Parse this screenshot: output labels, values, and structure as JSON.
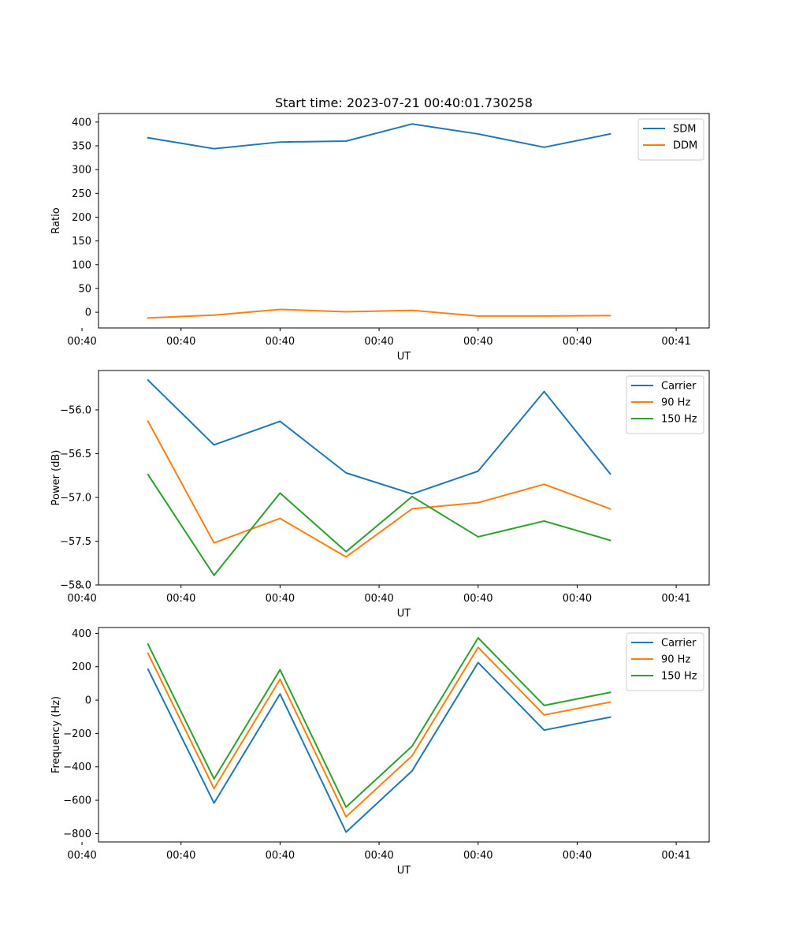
{
  "chart_data": [
    {
      "type": "line",
      "title": "Start time: 2023-07-21 00:40:01.730258",
      "xlabel": "UT",
      "ylabel": "Ratio",
      "x": [
        1,
        2,
        3,
        4,
        5,
        6,
        7,
        8
      ],
      "xlim": [
        0.25,
        9.5
      ],
      "xticks": [
        {
          "pos": 0,
          "label": "00:40"
        },
        {
          "pos": 1.5,
          "label": "00:40"
        },
        {
          "pos": 3,
          "label": "00:40"
        },
        {
          "pos": 4.5,
          "label": "00:40"
        },
        {
          "pos": 6,
          "label": "00:40"
        },
        {
          "pos": 7.5,
          "label": "00:40"
        },
        {
          "pos": 9,
          "label": "00:41"
        }
      ],
      "ylim": [
        -33,
        418
      ],
      "yticks": [
        0,
        50,
        100,
        150,
        200,
        250,
        300,
        350,
        400
      ],
      "legend": "top-right",
      "series": [
        {
          "name": "SDM",
          "color": "#1f77b4",
          "values": [
            367,
            344,
            358,
            360,
            396,
            375,
            347,
            375
          ]
        },
        {
          "name": "DDM",
          "color": "#ff7f0e",
          "values": [
            -12,
            -6,
            6,
            1,
            4,
            -8,
            -8,
            -7
          ]
        }
      ]
    },
    {
      "type": "line",
      "title": "",
      "xlabel": "UT",
      "ylabel": "Power (dB)",
      "x": [
        1,
        2,
        3,
        4,
        5,
        6,
        7,
        8
      ],
      "xlim": [
        0.25,
        9.5
      ],
      "xticks": [
        {
          "pos": 0,
          "label": "00:40"
        },
        {
          "pos": 1.5,
          "label": "00:40"
        },
        {
          "pos": 3,
          "label": "00:40"
        },
        {
          "pos": 4.5,
          "label": "00:40"
        },
        {
          "pos": 6,
          "label": "00:40"
        },
        {
          "pos": 7.5,
          "label": "00:40"
        },
        {
          "pos": 9,
          "label": "00:41"
        }
      ],
      "ylim": [
        -58.0,
        -55.55
      ],
      "yticks": [
        -58.0,
        -57.5,
        -57.0,
        -56.5,
        -56.0
      ],
      "ytick_labels": [
        "−58.0",
        "−57.5",
        "−57.0",
        "−56.5",
        "−56.0"
      ],
      "legend": "top-right",
      "series": [
        {
          "name": "Carrier",
          "color": "#1f77b4",
          "values": [
            -55.66,
            -56.4,
            -56.13,
            -56.72,
            -56.96,
            -56.7,
            -55.79,
            -56.73
          ]
        },
        {
          "name": "90 Hz",
          "color": "#ff7f0e",
          "values": [
            -56.13,
            -57.52,
            -57.24,
            -57.68,
            -57.13,
            -57.06,
            -56.85,
            -57.13
          ]
        },
        {
          "name": "150 Hz",
          "color": "#2ca02c",
          "values": [
            -56.74,
            -57.89,
            -56.95,
            -57.62,
            -56.99,
            -57.45,
            -57.27,
            -57.49
          ]
        }
      ]
    },
    {
      "type": "line",
      "title": "",
      "xlabel": "UT",
      "ylabel": "Frequency (Hz)",
      "x": [
        1,
        2,
        3,
        4,
        5,
        6,
        7,
        8
      ],
      "xlim": [
        0.25,
        9.5
      ],
      "xticks": [
        {
          "pos": 0,
          "label": "00:40"
        },
        {
          "pos": 1.5,
          "label": "00:40"
        },
        {
          "pos": 3,
          "label": "00:40"
        },
        {
          "pos": 4.5,
          "label": "00:40"
        },
        {
          "pos": 6,
          "label": "00:40"
        },
        {
          "pos": 7.5,
          "label": "00:40"
        },
        {
          "pos": 9,
          "label": "00:41"
        }
      ],
      "ylim": [
        -850,
        435
      ],
      "yticks": [
        -800,
        -600,
        -400,
        -200,
        0,
        200,
        400
      ],
      "ytick_labels": [
        "−800",
        "−600",
        "−400",
        "−200",
        "0",
        "200",
        "400"
      ],
      "legend": "top-right",
      "series": [
        {
          "name": "Carrier",
          "color": "#1f77b4",
          "values": [
            185,
            -617,
            37,
            -791,
            -424,
            225,
            -180,
            -102
          ]
        },
        {
          "name": "90 Hz",
          "color": "#ff7f0e",
          "values": [
            280,
            -530,
            125,
            -699,
            -334,
            316,
            -89,
            -12
          ]
        },
        {
          "name": "150 Hz",
          "color": "#2ca02c",
          "values": [
            335,
            -472,
            182,
            -641,
            -276,
            373,
            -32,
            46
          ]
        }
      ]
    }
  ]
}
